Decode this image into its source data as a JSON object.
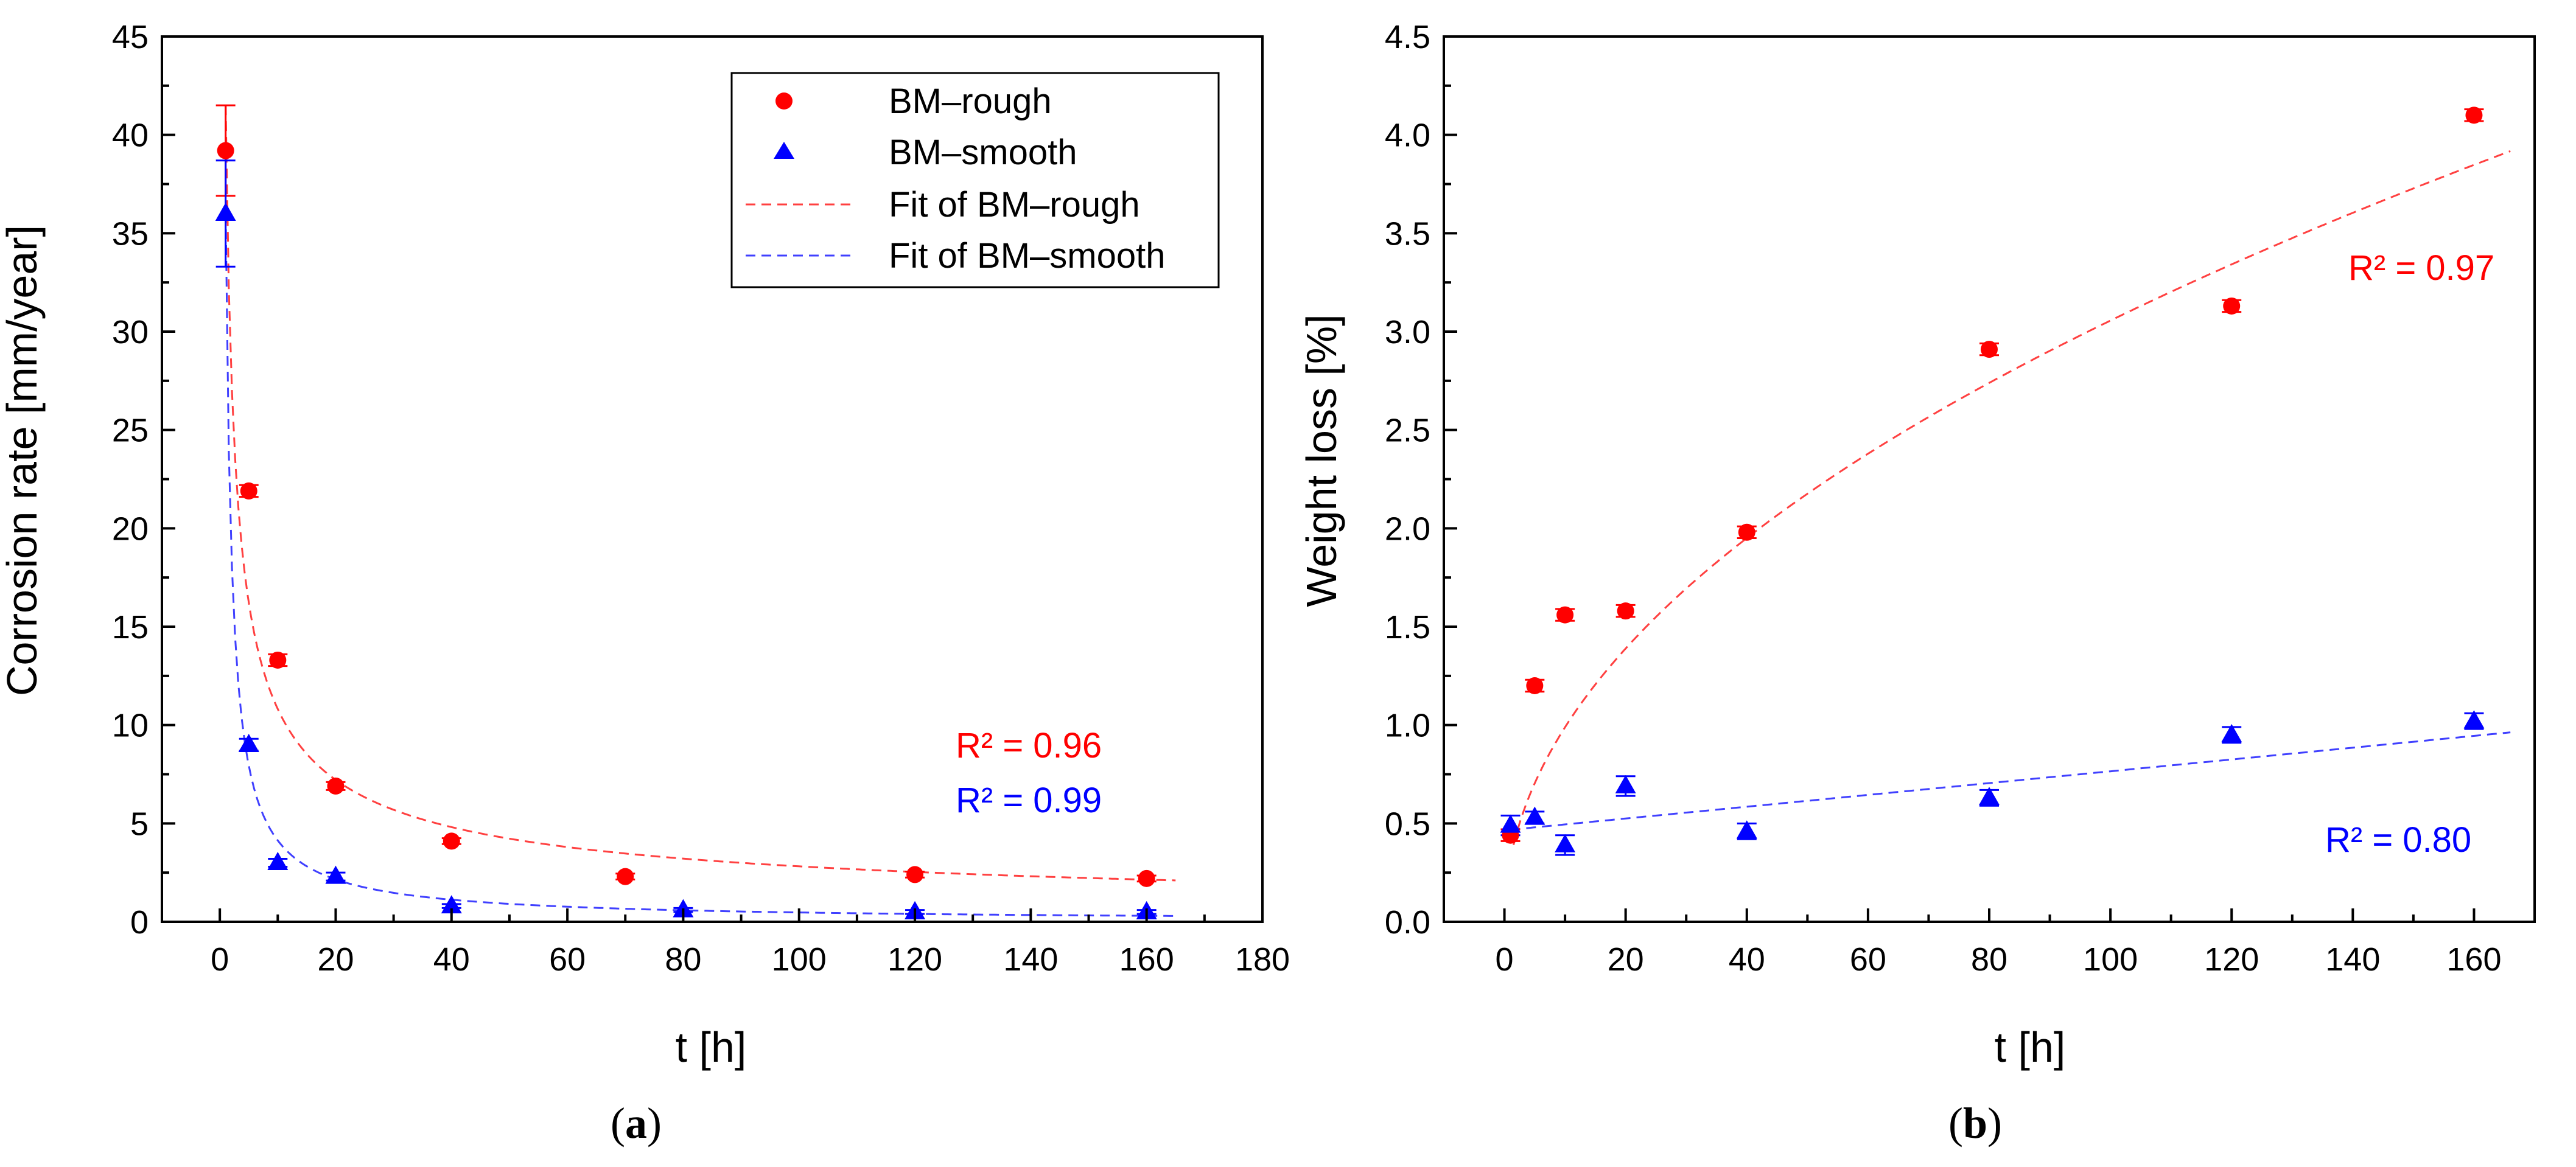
{
  "colors": {
    "rough": "#ff0000",
    "smooth": "#0000ff",
    "axis": "#000000"
  },
  "chart_data": [
    {
      "type": "scatter",
      "panel_label": "a",
      "title": "",
      "xlabel": "t [h]",
      "ylabel": "Corrosion rate [mm/year]",
      "xlim": [
        -10,
        180
      ],
      "ylim": [
        0,
        45
      ],
      "xticks": [
        0,
        20,
        40,
        60,
        80,
        100,
        120,
        140,
        160,
        180
      ],
      "yticks": [
        0,
        5,
        10,
        15,
        20,
        25,
        30,
        35,
        40,
        45
      ],
      "xtick_labels": [
        "0",
        "20",
        "40",
        "60",
        "80",
        "100",
        "120",
        "140",
        "160",
        "180"
      ],
      "ytick_labels": [
        "0",
        "5",
        "10",
        "15",
        "20",
        "25",
        "30",
        "35",
        "40",
        "45"
      ],
      "legend": {
        "placement": "top-right",
        "entries": [
          "BM–rough",
          "BM–smooth",
          "Fit of BM–rough",
          "Fit of BM–smooth"
        ]
      },
      "series": [
        {
          "name": "BM–rough",
          "key": "rough",
          "marker": "circle",
          "x": [
            1,
            5,
            10,
            20,
            40,
            70,
            120,
            160
          ],
          "y": [
            39.2,
            21.9,
            13.3,
            6.9,
            4.1,
            2.3,
            2.4,
            2.2
          ],
          "err": [
            2.3,
            0.3,
            0.3,
            0.2,
            0.15,
            0.15,
            0.15,
            0.15
          ]
        },
        {
          "name": "BM–smooth",
          "key": "smooth",
          "marker": "triangle",
          "x": [
            1,
            5,
            10,
            20,
            40,
            80,
            120,
            160
          ],
          "y": [
            36.0,
            9.0,
            3.0,
            2.3,
            0.8,
            0.6,
            0.5,
            0.5
          ],
          "err": [
            2.7,
            0.3,
            0.2,
            0.2,
            0.1,
            0.1,
            0.1,
            0.1
          ]
        }
      ],
      "fits": [
        {
          "name": "Fit of BM–rough",
          "key": "rough",
          "model": "power",
          "a": 41.5,
          "b": -0.584,
          "x_range": [
            1,
            165
          ]
        },
        {
          "name": "Fit of BM–smooth",
          "key": "smooth",
          "model": "power",
          "a": 36.0,
          "b": -0.94,
          "x_range": [
            1,
            165
          ]
        }
      ],
      "annotations": [
        {
          "key": "rough",
          "text": "R² = 0.96"
        },
        {
          "key": "smooth",
          "text": "R² = 0.99"
        }
      ]
    },
    {
      "type": "scatter",
      "panel_label": "b",
      "title": "",
      "xlabel": "t [h]",
      "ylabel": "Weight loss [%]",
      "xlim": [
        -10,
        170
      ],
      "ylim": [
        0,
        4.5
      ],
      "xticks": [
        0,
        20,
        40,
        60,
        80,
        100,
        120,
        140,
        160
      ],
      "yticks": [
        0,
        0.5,
        1.0,
        1.5,
        2.0,
        2.5,
        3.0,
        3.5,
        4.0,
        4.5
      ],
      "xtick_labels": [
        "0",
        "20",
        "40",
        "60",
        "80",
        "100",
        "120",
        "140",
        "160"
      ],
      "ytick_labels": [
        "0.0",
        "0.5",
        "1.0",
        "1.5",
        "2.0",
        "2.5",
        "3.0",
        "3.5",
        "4.0",
        "4.5"
      ],
      "series": [
        {
          "name": "BM–rough",
          "key": "rough",
          "marker": "circle",
          "x": [
            1,
            5,
            10,
            20,
            40,
            80,
            120,
            160
          ],
          "y": [
            0.44,
            1.2,
            1.56,
            1.58,
            1.98,
            2.91,
            3.13,
            4.1
          ],
          "err": [
            0.03,
            0.03,
            0.03,
            0.03,
            0.03,
            0.03,
            0.03,
            0.03
          ]
        },
        {
          "name": "BM–smooth",
          "key": "smooth",
          "marker": "triangle",
          "x": [
            1,
            5,
            10,
            20,
            40,
            80,
            120,
            160
          ],
          "y": [
            0.49,
            0.53,
            0.39,
            0.69,
            0.46,
            0.63,
            0.95,
            1.02
          ],
          "err": [
            0.05,
            0.03,
            0.05,
            0.05,
            0.04,
            0.04,
            0.04,
            0.04
          ]
        }
      ],
      "fits": [
        {
          "name": "Fit of BM–rough",
          "key": "rough",
          "model": "power",
          "a": 0.32,
          "b": 0.49,
          "x_range": [
            1.5,
            166
          ]
        },
        {
          "name": "Fit of BM–smooth",
          "key": "smooth",
          "model": "linear",
          "a": 0.465,
          "b": 0.003,
          "x_range": [
            1,
            166
          ]
        }
      ],
      "annotations": [
        {
          "key": "rough",
          "text": "R² = 0.97"
        },
        {
          "key": "smooth",
          "text": "R² = 0.80"
        }
      ]
    }
  ]
}
